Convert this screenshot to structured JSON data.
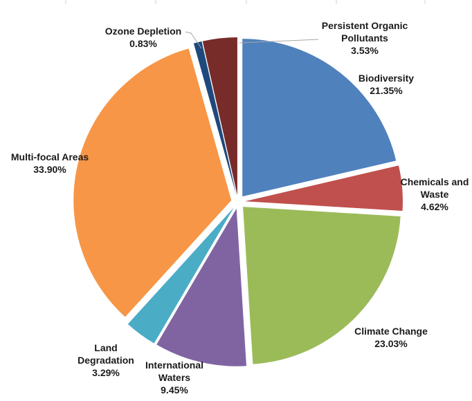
{
  "chart_data": {
    "type": "pie",
    "title": "",
    "unit": "%",
    "slices": [
      {
        "name": "Biodiversity",
        "value": 21.35,
        "label": "21.35%",
        "color": "#4f81bd"
      },
      {
        "name": "Chemicals and Waste",
        "value": 4.62,
        "label": "4.62%",
        "color": "#c0504d"
      },
      {
        "name": "Climate Change",
        "value": 23.03,
        "label": "23.03%",
        "color": "#9bbb59"
      },
      {
        "name": "International Waters",
        "value": 9.45,
        "label": "9.45%",
        "color": "#8064a2"
      },
      {
        "name": "Land Degradation",
        "value": 3.29,
        "label": "3.29%",
        "color": "#4bacc6"
      },
      {
        "name": "Multi-focal Areas",
        "value": 33.9,
        "label": "33.90%",
        "color": "#f79646"
      },
      {
        "name": "Ozone Depletion",
        "value": 0.83,
        "label": "0.83%",
        "color": "#1f497d"
      },
      {
        "name": "Persistent Organic Pollutants",
        "value": 3.53,
        "label": "3.53%",
        "color": "#772c2a"
      }
    ],
    "legend": "none",
    "data_labels": "outside"
  }
}
